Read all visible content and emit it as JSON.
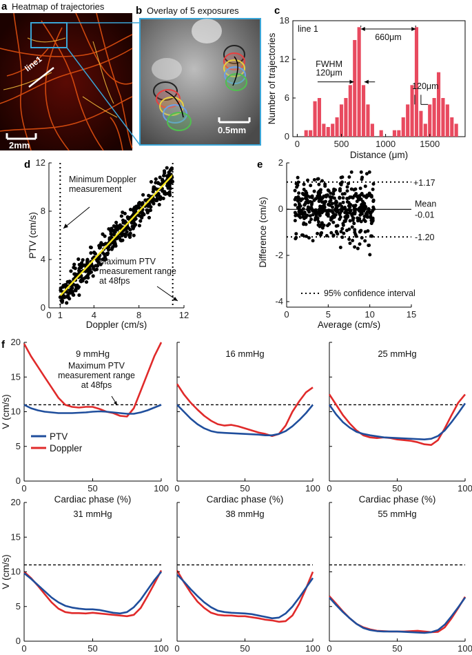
{
  "panels": {
    "a": {
      "letter": "a",
      "title": "Heatmap of trajectories",
      "line_label": "line1",
      "scale_label": "2mm"
    },
    "b": {
      "letter": "b",
      "title": "Overlay of 5 exposures",
      "scale_label": "0.5mm"
    }
  },
  "colors": {
    "bar": "#e84a5f",
    "ptv": "#1f4e9c",
    "doppler": "#e02a2a",
    "fit_line": "#f4e21c",
    "frame": "#3aa6d8"
  },
  "chart_data": [
    {
      "id": "c",
      "type": "bar",
      "letter": "c",
      "inset_label": "line 1",
      "xlabel": "Distance (μm)",
      "ylabel": "Number of trajectories",
      "xlim": [
        -50,
        1900
      ],
      "ylim": [
        0,
        18
      ],
      "xticks": [
        0,
        500,
        1000,
        1500
      ],
      "yticks": [
        0,
        6,
        12,
        18
      ],
      "x": [
        100,
        150,
        200,
        250,
        300,
        350,
        400,
        450,
        500,
        550,
        600,
        650,
        700,
        750,
        800,
        850,
        950,
        1100,
        1150,
        1200,
        1250,
        1300,
        1350,
        1400,
        1450,
        1500,
        1550,
        1600,
        1650,
        1700,
        1750,
        1800
      ],
      "values": [
        1,
        1,
        5.5,
        6,
        2,
        1.5,
        2,
        3,
        5,
        6,
        8,
        15,
        17,
        8,
        5,
        2,
        1,
        1,
        1,
        3,
        5,
        8,
        17,
        4,
        2,
        5,
        6,
        10,
        6,
        5,
        3,
        2
      ],
      "annotations": {
        "peak_distance": "660μm",
        "fwhm_label": "FWHM",
        "fwhm_left": "120μm",
        "fwhm_right": "120μm"
      }
    },
    {
      "id": "d",
      "type": "scatter",
      "letter": "d",
      "xlabel": "Doppler (cm/s)",
      "ylabel": "PTV (cm/s)",
      "xlim": [
        0,
        12
      ],
      "ylim": [
        0,
        12
      ],
      "xticks": [
        0,
        1,
        4,
        8,
        12
      ],
      "yticks": [
        0,
        4,
        8,
        12
      ],
      "fit": {
        "x": [
          1,
          11
        ],
        "y": [
          1,
          11
        ]
      },
      "vlines": [
        1,
        11
      ],
      "annotations": {
        "min_doppler": "Minimum Doppler measurement",
        "max_ptv": "Maximum PTV measurement range at 48fps"
      }
    },
    {
      "id": "e",
      "type": "scatter",
      "letter": "e",
      "xlabel": "Average (cm/s)",
      "ylabel": "Difference (cm/s)",
      "xlim": [
        0,
        15
      ],
      "ylim": [
        -4,
        2
      ],
      "xticks": [
        0,
        5,
        10,
        15
      ],
      "yticks": [
        -4,
        -2,
        0,
        2
      ],
      "hlines": [
        1.17,
        -0.01,
        -1.2
      ],
      "annotations": {
        "upper": "+1.17",
        "mean_label": "Mean",
        "mean_value": "-0.01",
        "lower": "-1.20",
        "ci": "95% confidence interval"
      }
    },
    {
      "id": "f",
      "type": "line",
      "letter": "f",
      "xlabel": "Cardiac phase (%)",
      "ylabel": "V (cm/s)",
      "xlim": [
        0,
        100
      ],
      "ylim": [
        0,
        20
      ],
      "xticks": [
        0,
        50,
        100
      ],
      "yticks": [
        0,
        5,
        10,
        15,
        20
      ],
      "threshold": 11,
      "legend": [
        "PTV",
        "Doppler"
      ],
      "annotation": "Maximum PTV measurement range at 48fps",
      "x": [
        0,
        5,
        10,
        15,
        20,
        25,
        30,
        35,
        40,
        45,
        50,
        55,
        60,
        65,
        70,
        75,
        80,
        85,
        90,
        95,
        100
      ],
      "panels": [
        {
          "title": "9 mmHg",
          "ptv": [
            11,
            10.5,
            10.2,
            10,
            9.9,
            9.8,
            9.8,
            9.8,
            9.85,
            9.9,
            10,
            10.05,
            10,
            9.9,
            9.8,
            9.7,
            9.7,
            9.9,
            10.2,
            10.6,
            11
          ],
          "doppler": [
            19.8,
            18,
            16.5,
            15,
            13.5,
            12,
            11,
            10.7,
            10.6,
            10.7,
            10.7,
            10.4,
            10,
            9.8,
            9.4,
            9.3,
            10.5,
            13,
            15.5,
            18,
            20
          ]
        },
        {
          "title": "16 mmHg",
          "ptv": [
            11,
            10,
            9,
            8.2,
            7.6,
            7.2,
            7,
            6.95,
            6.9,
            6.85,
            6.8,
            6.75,
            6.7,
            6.6,
            6.6,
            6.8,
            7.2,
            7.9,
            8.8,
            9.8,
            11
          ],
          "doppler": [
            14,
            12.5,
            11.3,
            10.3,
            9.4,
            8.7,
            8.2,
            8,
            8.1,
            7.9,
            7.6,
            7.3,
            7,
            6.8,
            6.5,
            6.8,
            8,
            10,
            11.5,
            12.8,
            13.5
          ]
        },
        {
          "title": "25 mmHg",
          "ptv": [
            11,
            9.6,
            8.5,
            7.7,
            7.1,
            6.8,
            6.6,
            6.45,
            6.3,
            6.25,
            6.2,
            6.15,
            6.1,
            6.05,
            6,
            6.1,
            6.5,
            7.3,
            8.5,
            9.8,
            11.2
          ],
          "doppler": [
            12.5,
            11,
            9.5,
            8.3,
            7.3,
            6.6,
            6.3,
            6.2,
            6.3,
            6.2,
            6,
            5.9,
            5.8,
            5.6,
            5.3,
            5.2,
            5.9,
            7.6,
            9.5,
            11.3,
            12.5
          ]
        },
        {
          "title": "31 mmHg",
          "ptv": [
            9.8,
            9,
            8.1,
            7.2,
            6.3,
            5.6,
            5.1,
            4.85,
            4.7,
            4.6,
            4.6,
            4.5,
            4.3,
            4.1,
            4,
            4.2,
            4.9,
            6,
            7.4,
            8.8,
            10
          ],
          "doppler": [
            10,
            9.1,
            8,
            6.8,
            5.6,
            4.7,
            4.2,
            4.05,
            4.05,
            4,
            4.1,
            4,
            3.9,
            3.8,
            3.7,
            3.6,
            3.8,
            4.8,
            6.5,
            8.3,
            10.2
          ]
        },
        {
          "title": "38 mmHg",
          "ptv": [
            9.6,
            8.6,
            7.5,
            6.5,
            5.6,
            4.9,
            4.4,
            4.2,
            4.1,
            4.05,
            4,
            3.9,
            3.7,
            3.5,
            3.3,
            3.4,
            4,
            5,
            6.3,
            7.7,
            9.1
          ],
          "doppler": [
            10.2,
            8.5,
            7,
            5.7,
            4.8,
            4.1,
            3.8,
            3.7,
            3.7,
            3.6,
            3.6,
            3.45,
            3.3,
            3.1,
            3,
            2.8,
            2.9,
            3.7,
            5.4,
            7.6,
            10
          ]
        },
        {
          "title": "55 mmHg",
          "ptv": [
            6.3,
            5.2,
            4.2,
            3.3,
            2.5,
            1.9,
            1.6,
            1.45,
            1.4,
            1.4,
            1.4,
            1.35,
            1.3,
            1.25,
            1.2,
            1.3,
            1.6,
            2.4,
            3.6,
            4.9,
            6.3
          ],
          "doppler": [
            6.5,
            5.4,
            4.3,
            3.3,
            2.5,
            2,
            1.7,
            1.5,
            1.45,
            1.4,
            1.4,
            1.4,
            1.45,
            1.5,
            1.4,
            1.3,
            1.35,
            2,
            3.3,
            4.8,
            6.4
          ]
        }
      ]
    }
  ]
}
